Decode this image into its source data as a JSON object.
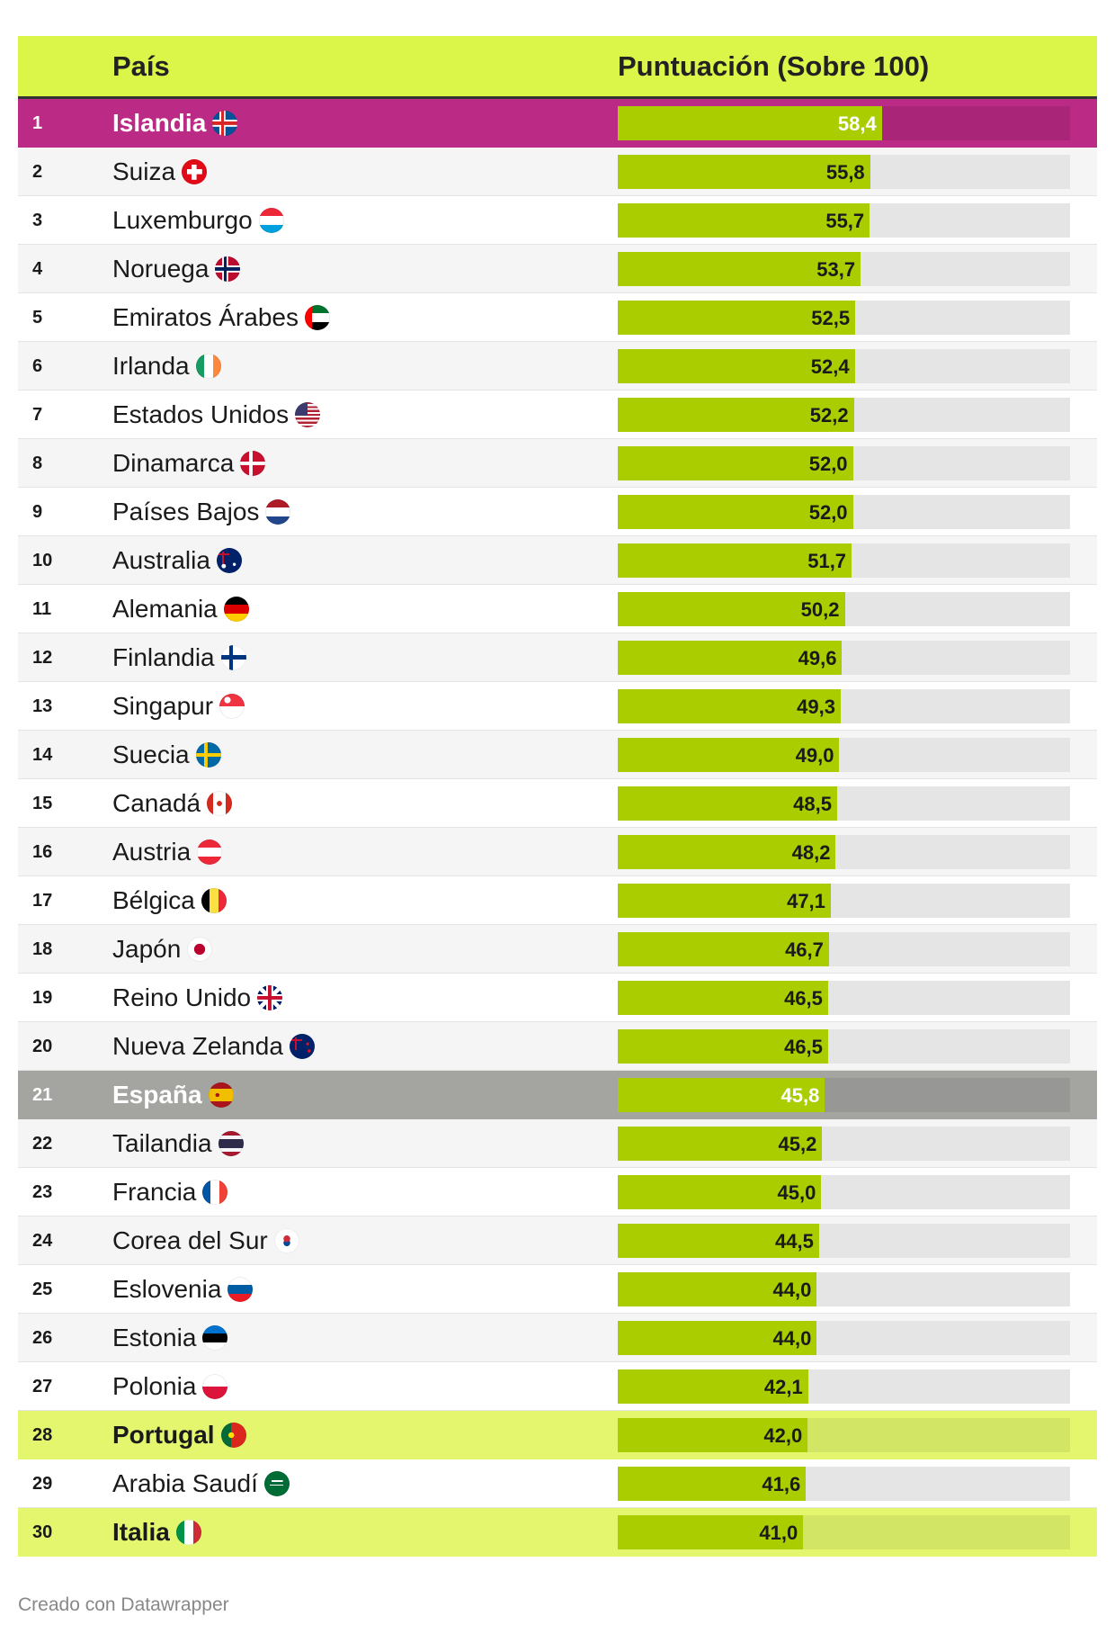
{
  "header": {
    "col_country": "País",
    "col_score": "Puntuación (Sobre 100)"
  },
  "credit": "Creado con Datawrapper",
  "colors": {
    "header_bg": "#dcf549",
    "bar": "#aacd00",
    "track": "#e5e5e5",
    "highlight_pink": "#bb2a84",
    "highlight_gray": "#a4a4a1",
    "highlight_lime": "#e3f66e"
  },
  "chart_data": {
    "type": "bar",
    "orientation": "horizontal",
    "xlim": [
      0,
      100
    ],
    "rows": [
      {
        "rank": "1",
        "country": "Islandia",
        "value": 58.4,
        "label": "58,4",
        "flag": "iceland-flag-icon",
        "highlight": "pink"
      },
      {
        "rank": "2",
        "country": "Suiza",
        "value": 55.8,
        "label": "55,8",
        "flag": "switzerland-flag-icon"
      },
      {
        "rank": "3",
        "country": "Luxemburgo",
        "value": 55.7,
        "label": "55,7",
        "flag": "luxembourg-flag-icon"
      },
      {
        "rank": "4",
        "country": "Noruega",
        "value": 53.7,
        "label": "53,7",
        "flag": "norway-flag-icon"
      },
      {
        "rank": "5",
        "country": "Emiratos Árabes",
        "value": 52.5,
        "label": "52,5",
        "flag": "uae-flag-icon"
      },
      {
        "rank": "6",
        "country": "Irlanda",
        "value": 52.4,
        "label": "52,4",
        "flag": "ireland-flag-icon"
      },
      {
        "rank": "7",
        "country": "Estados Unidos",
        "value": 52.2,
        "label": "52,2",
        "flag": "usa-flag-icon"
      },
      {
        "rank": "8",
        "country": "Dinamarca",
        "value": 52.0,
        "label": "52,0",
        "flag": "denmark-flag-icon"
      },
      {
        "rank": "9",
        "country": "Países Bajos",
        "value": 52.0,
        "label": "52,0",
        "flag": "netherlands-flag-icon"
      },
      {
        "rank": "10",
        "country": "Australia",
        "value": 51.7,
        "label": "51,7",
        "flag": "australia-flag-icon"
      },
      {
        "rank": "11",
        "country": "Alemania",
        "value": 50.2,
        "label": "50,2",
        "flag": "germany-flag-icon"
      },
      {
        "rank": "12",
        "country": "Finlandia",
        "value": 49.6,
        "label": "49,6",
        "flag": "finland-flag-icon"
      },
      {
        "rank": "13",
        "country": "Singapur",
        "value": 49.3,
        "label": "49,3",
        "flag": "singapore-flag-icon"
      },
      {
        "rank": "14",
        "country": "Suecia",
        "value": 49.0,
        "label": "49,0",
        "flag": "sweden-flag-icon"
      },
      {
        "rank": "15",
        "country": "Canadá",
        "value": 48.5,
        "label": "48,5",
        "flag": "canada-flag-icon"
      },
      {
        "rank": "16",
        "country": "Austria",
        "value": 48.2,
        "label": "48,2",
        "flag": "austria-flag-icon"
      },
      {
        "rank": "17",
        "country": "Bélgica",
        "value": 47.1,
        "label": "47,1",
        "flag": "belgium-flag-icon"
      },
      {
        "rank": "18",
        "country": "Japón",
        "value": 46.7,
        "label": "46,7",
        "flag": "japan-flag-icon"
      },
      {
        "rank": "19",
        "country": "Reino Unido",
        "value": 46.5,
        "label": "46,5",
        "flag": "uk-flag-icon"
      },
      {
        "rank": "20",
        "country": "Nueva Zelanda",
        "value": 46.5,
        "label": "46,5",
        "flag": "new-zealand-flag-icon"
      },
      {
        "rank": "21",
        "country": "España",
        "value": 45.8,
        "label": "45,8",
        "flag": "spain-flag-icon",
        "highlight": "gray"
      },
      {
        "rank": "22",
        "country": "Tailandia",
        "value": 45.2,
        "label": "45,2",
        "flag": "thailand-flag-icon"
      },
      {
        "rank": "23",
        "country": "Francia",
        "value": 45.0,
        "label": "45,0",
        "flag": "france-flag-icon"
      },
      {
        "rank": "24",
        "country": "Corea del Sur",
        "value": 44.5,
        "label": "44,5",
        "flag": "south-korea-flag-icon"
      },
      {
        "rank": "25",
        "country": "Eslovenia",
        "value": 44.0,
        "label": "44,0",
        "flag": "slovenia-flag-icon"
      },
      {
        "rank": "26",
        "country": "Estonia",
        "value": 44.0,
        "label": "44,0",
        "flag": "estonia-flag-icon"
      },
      {
        "rank": "27",
        "country": "Polonia",
        "value": 42.1,
        "label": "42,1",
        "flag": "poland-flag-icon"
      },
      {
        "rank": "28",
        "country": "Portugal",
        "value": 42.0,
        "label": "42,0",
        "flag": "portugal-flag-icon",
        "highlight": "lime"
      },
      {
        "rank": "29",
        "country": "Arabia Saudí",
        "value": 41.6,
        "label": "41,6",
        "flag": "saudi-arabia-flag-icon"
      },
      {
        "rank": "30",
        "country": "Italia",
        "value": 41.0,
        "label": "41,0",
        "flag": "italy-flag-icon",
        "highlight": "lime"
      }
    ]
  }
}
